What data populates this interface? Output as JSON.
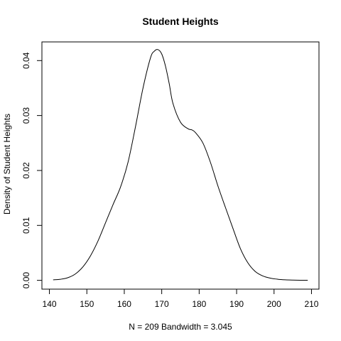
{
  "chart_data": {
    "type": "line",
    "title": "Student Heights",
    "xlabel": "N = 209   Bandwidth = 3.045",
    "ylabel": "Density of Student Heights",
    "xlim": [
      138,
      212
    ],
    "ylim": [
      -0.0016,
      0.0434
    ],
    "x_ticks": [
      140,
      150,
      160,
      170,
      180,
      190,
      200,
      210
    ],
    "x_tick_labels": [
      "140",
      "150",
      "160",
      "170",
      "180",
      "190",
      "200",
      "210"
    ],
    "y_ticks": [
      0.0,
      0.01,
      0.02,
      0.03,
      0.04
    ],
    "y_tick_labels": [
      "0.00",
      "0.01",
      "0.02",
      "0.03",
      "0.04"
    ],
    "grid": false,
    "legend": "none",
    "series": [
      {
        "color": "#000000",
        "x": [
          141,
          143,
          145,
          147,
          149,
          151,
          153,
          155,
          157,
          159,
          161,
          163,
          165,
          167,
          168,
          169,
          170,
          171,
          172,
          173,
          175,
          177,
          178,
          179,
          181,
          183,
          185,
          187,
          189,
          191,
          193,
          195,
          197,
          199,
          201,
          203,
          205,
          207,
          209
        ],
        "y": [
          0.0001,
          0.0002,
          0.0005,
          0.0012,
          0.0025,
          0.0045,
          0.0072,
          0.0105,
          0.0138,
          0.017,
          0.0215,
          0.028,
          0.035,
          0.0405,
          0.0417,
          0.042,
          0.0412,
          0.039,
          0.0358,
          0.0322,
          0.0288,
          0.0276,
          0.0274,
          0.0269,
          0.025,
          0.0215,
          0.0172,
          0.0133,
          0.0095,
          0.0058,
          0.0032,
          0.0016,
          0.0008,
          0.0004,
          0.0002,
          0.0001,
          5e-05,
          2e-05,
          1e-05
        ]
      }
    ]
  }
}
